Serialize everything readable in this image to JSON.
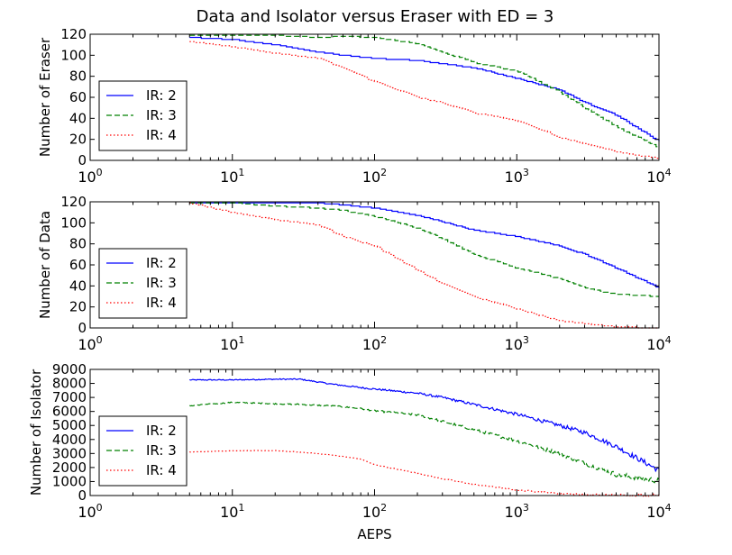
{
  "title": "Data and Isolator versus Eraser with ED = 3",
  "colors": {
    "ir2": "#0000ff",
    "ir3": "#008000",
    "ir4": "#ff0000"
  },
  "chart_data": [
    {
      "type": "line",
      "xscale": "log",
      "xlim": [
        1,
        10000
      ],
      "ylim": [
        0,
        120
      ],
      "xticks": [
        {
          "base": "10",
          "exp": "0"
        },
        {
          "base": "10",
          "exp": "1"
        },
        {
          "base": "10",
          "exp": "2"
        },
        {
          "base": "10",
          "exp": "3"
        },
        {
          "base": "10",
          "exp": "4"
        }
      ],
      "yticks": [
        "0",
        "20",
        "40",
        "60",
        "80",
        "100",
        "120"
      ],
      "xlabel": "",
      "ylabel": "Number of Eraser",
      "legend": "lower-left",
      "series": [
        {
          "name": "IR: 2",
          "color": "#0000ff",
          "style": "solid",
          "x": [
            5,
            10,
            20,
            40,
            60,
            100,
            200,
            300,
            500,
            1000,
            2000,
            3000,
            5000,
            10000
          ],
          "y": [
            117,
            115,
            110,
            103,
            100,
            97,
            95,
            92,
            88,
            78,
            67,
            55,
            43,
            18
          ]
        },
        {
          "name": "IR: 3",
          "color": "#008000",
          "style": "dashed",
          "x": [
            5,
            10,
            20,
            40,
            60,
            100,
            200,
            300,
            500,
            1000,
            2000,
            3000,
            5000,
            10000
          ],
          "y": [
            119,
            119,
            119,
            117,
            118,
            117,
            111,
            103,
            93,
            85,
            65,
            50,
            32,
            12
          ]
        },
        {
          "name": "IR: 4",
          "color": "#ff0000",
          "style": "dotted",
          "x": [
            5,
            10,
            20,
            40,
            60,
            100,
            200,
            300,
            500,
            1000,
            2000,
            3000,
            5000,
            10000
          ],
          "y": [
            113,
            108,
            102,
            97,
            88,
            75,
            60,
            55,
            45,
            38,
            22,
            16,
            8,
            2
          ]
        }
      ]
    },
    {
      "type": "line",
      "xscale": "log",
      "xlim": [
        1,
        10000
      ],
      "ylim": [
        0,
        120
      ],
      "xticks": [
        {
          "base": "10",
          "exp": "0"
        },
        {
          "base": "10",
          "exp": "1"
        },
        {
          "base": "10",
          "exp": "2"
        },
        {
          "base": "10",
          "exp": "3"
        },
        {
          "base": "10",
          "exp": "4"
        }
      ],
      "yticks": [
        "0",
        "20",
        "40",
        "60",
        "80",
        "100",
        "120"
      ],
      "xlabel": "",
      "ylabel": "Number of Data",
      "legend": "lower-left",
      "series": [
        {
          "name": "IR: 2",
          "color": "#0000ff",
          "style": "solid",
          "x": [
            5,
            10,
            20,
            40,
            60,
            100,
            200,
            300,
            500,
            1000,
            2000,
            3000,
            5000,
            10000
          ],
          "y": [
            119,
            119,
            119,
            119,
            117,
            114,
            107,
            101,
            93,
            87,
            78,
            70,
            57,
            38
          ]
        },
        {
          "name": "IR: 3",
          "color": "#008000",
          "style": "dashed",
          "x": [
            5,
            10,
            20,
            40,
            60,
            100,
            200,
            300,
            500,
            1000,
            2000,
            3000,
            5000,
            10000
          ],
          "y": [
            119,
            119,
            116,
            114,
            112,
            106,
            95,
            85,
            70,
            57,
            47,
            38,
            32,
            30
          ]
        },
        {
          "name": "IR: 4",
          "color": "#ff0000",
          "style": "dotted",
          "x": [
            5,
            10,
            20,
            40,
            60,
            100,
            200,
            300,
            500,
            1000,
            2000,
            3000,
            5000,
            10000
          ],
          "y": [
            119,
            110,
            103,
            98,
            87,
            78,
            55,
            42,
            30,
            18,
            7,
            4,
            1,
            0
          ]
        }
      ]
    },
    {
      "type": "line",
      "xscale": "log",
      "xlim": [
        1,
        10000
      ],
      "ylim": [
        0,
        9000
      ],
      "xticks": [
        {
          "base": "10",
          "exp": "0"
        },
        {
          "base": "10",
          "exp": "1"
        },
        {
          "base": "10",
          "exp": "2"
        },
        {
          "base": "10",
          "exp": "3"
        },
        {
          "base": "10",
          "exp": "4"
        }
      ],
      "yticks": [
        "0",
        "1000",
        "2000",
        "3000",
        "4000",
        "5000",
        "6000",
        "7000",
        "8000",
        "9000"
      ],
      "xlabel": "AEPS",
      "ylabel": "Number of Isolator",
      "legend": "lower-left",
      "series": [
        {
          "name": "IR: 2",
          "color": "#0000ff",
          "style": "solid",
          "x": [
            5,
            10,
            20,
            30,
            50,
            80,
            100,
            200,
            300,
            500,
            1000,
            2000,
            3000,
            5000,
            10000
          ],
          "y": [
            8250,
            8250,
            8300,
            8300,
            7950,
            7700,
            7600,
            7300,
            7000,
            6500,
            5800,
            5000,
            4500,
            3500,
            1800
          ]
        },
        {
          "name": "IR: 3",
          "color": "#008000",
          "style": "dashed",
          "x": [
            5,
            10,
            20,
            30,
            50,
            80,
            100,
            200,
            300,
            500,
            1000,
            2000,
            3000,
            5000,
            10000
          ],
          "y": [
            6400,
            6650,
            6550,
            6500,
            6400,
            6200,
            6050,
            5750,
            5300,
            4700,
            3900,
            3000,
            2300,
            1500,
            1050
          ]
        },
        {
          "name": "IR: 4",
          "color": "#ff0000",
          "style": "dotted",
          "x": [
            5,
            10,
            20,
            30,
            50,
            80,
            100,
            200,
            300,
            500,
            1000,
            2000,
            3000,
            5000,
            10000
          ],
          "y": [
            3100,
            3200,
            3200,
            3100,
            2900,
            2600,
            2200,
            1600,
            1200,
            800,
            400,
            150,
            80,
            40,
            20
          ]
        }
      ]
    }
  ]
}
